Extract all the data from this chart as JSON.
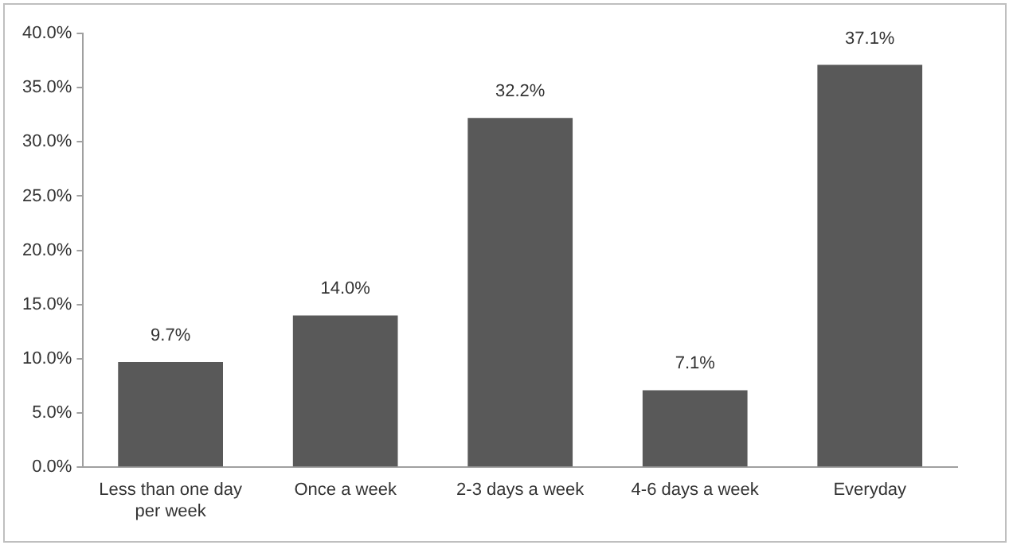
{
  "chart_data": {
    "type": "bar",
    "categories": [
      "Less than one day per week",
      "Once a week",
      "2-3 days a week",
      "4-6 days a week",
      "Everyday"
    ],
    "values": [
      9.7,
      14.0,
      32.2,
      7.1,
      37.1
    ],
    "value_labels": [
      "9.7%",
      "14.0%",
      "32.2%",
      "7.1%",
      "37.1%"
    ],
    "color": "#595959",
    "ylim": [
      0,
      40
    ],
    "yticks": [
      {
        "value": 0,
        "label": "0.0%"
      },
      {
        "value": 5,
        "label": "5.0%"
      },
      {
        "value": 10,
        "label": "10.0%"
      },
      {
        "value": 15,
        "label": "15.0%"
      },
      {
        "value": 20,
        "label": "20.0%"
      },
      {
        "value": 25,
        "label": "25.0%"
      },
      {
        "value": 30,
        "label": "30.0%"
      },
      {
        "value": 35,
        "label": "35.0%"
      },
      {
        "value": 40,
        "label": "40.0%"
      }
    ],
    "grid": false,
    "legend": false
  }
}
